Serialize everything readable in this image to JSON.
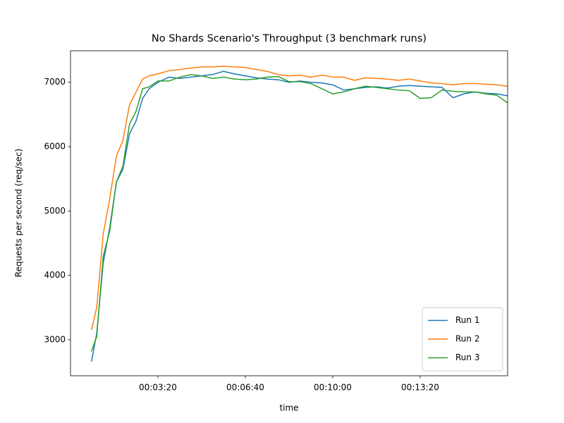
{
  "chart_data": {
    "type": "line",
    "title": "No Shards Scenario's Throughput (3 benchmark runs)",
    "x_label": "time",
    "y_label": "Requests per second (req/sec)",
    "x": [
      48,
      60,
      75,
      90,
      105,
      120,
      135,
      150,
      165,
      180,
      200,
      225,
      250,
      275,
      300,
      325,
      350,
      375,
      400,
      425,
      450,
      475,
      500,
      525,
      550,
      575,
      600,
      625,
      650,
      675,
      700,
      725,
      750,
      775,
      800,
      825,
      850,
      875,
      900,
      925,
      950,
      975,
      1000
    ],
    "series": [
      {
        "name": "Run 1",
        "color": "#1f77b4",
        "values": [
          2660,
          3100,
          4200,
          4750,
          5450,
          5650,
          6200,
          6400,
          6750,
          6900,
          7000,
          7080,
          7060,
          7080,
          7100,
          7120,
          7170,
          7130,
          7100,
          7070,
          7050,
          7040,
          7000,
          7020,
          7000,
          6990,
          6960,
          6880,
          6900,
          6920,
          6930,
          6910,
          6940,
          6950,
          6940,
          6930,
          6920,
          6760,
          6820,
          6850,
          6830,
          6820,
          6790
        ]
      },
      {
        "name": "Run 2",
        "color": "#ff7f0e",
        "values": [
          3150,
          3500,
          4650,
          5200,
          5850,
          6100,
          6650,
          6850,
          7050,
          7100,
          7130,
          7180,
          7200,
          7220,
          7240,
          7240,
          7250,
          7240,
          7230,
          7200,
          7170,
          7120,
          7100,
          7110,
          7080,
          7110,
          7080,
          7080,
          7030,
          7070,
          7060,
          7050,
          7030,
          7050,
          7020,
          6990,
          6980,
          6960,
          6980,
          6980,
          6970,
          6960,
          6940
        ]
      },
      {
        "name": "Run 3",
        "color": "#2ca02c",
        "values": [
          2820,
          3050,
          4300,
          4700,
          5450,
          5700,
          6350,
          6550,
          6900,
          6930,
          7020,
          7020,
          7080,
          7120,
          7100,
          7060,
          7080,
          7050,
          7040,
          7050,
          7080,
          7090,
          7010,
          7010,
          6980,
          6900,
          6820,
          6850,
          6900,
          6940,
          6920,
          6900,
          6880,
          6870,
          6750,
          6760,
          6880,
          6860,
          6850,
          6850,
          6820,
          6800,
          6680
        ]
      }
    ],
    "xlim": [
      0,
      1000
    ],
    "ylim": [
      2440,
      7490
    ],
    "xticks": [
      {
        "value": 200,
        "label": "00:03:20"
      },
      {
        "value": 400,
        "label": "00:06:40"
      },
      {
        "value": 600,
        "label": "00:10:00"
      },
      {
        "value": 800,
        "label": "00:13:20"
      }
    ],
    "yticks": [
      3000,
      4000,
      5000,
      6000,
      7000
    ],
    "legend": "lower right"
  }
}
